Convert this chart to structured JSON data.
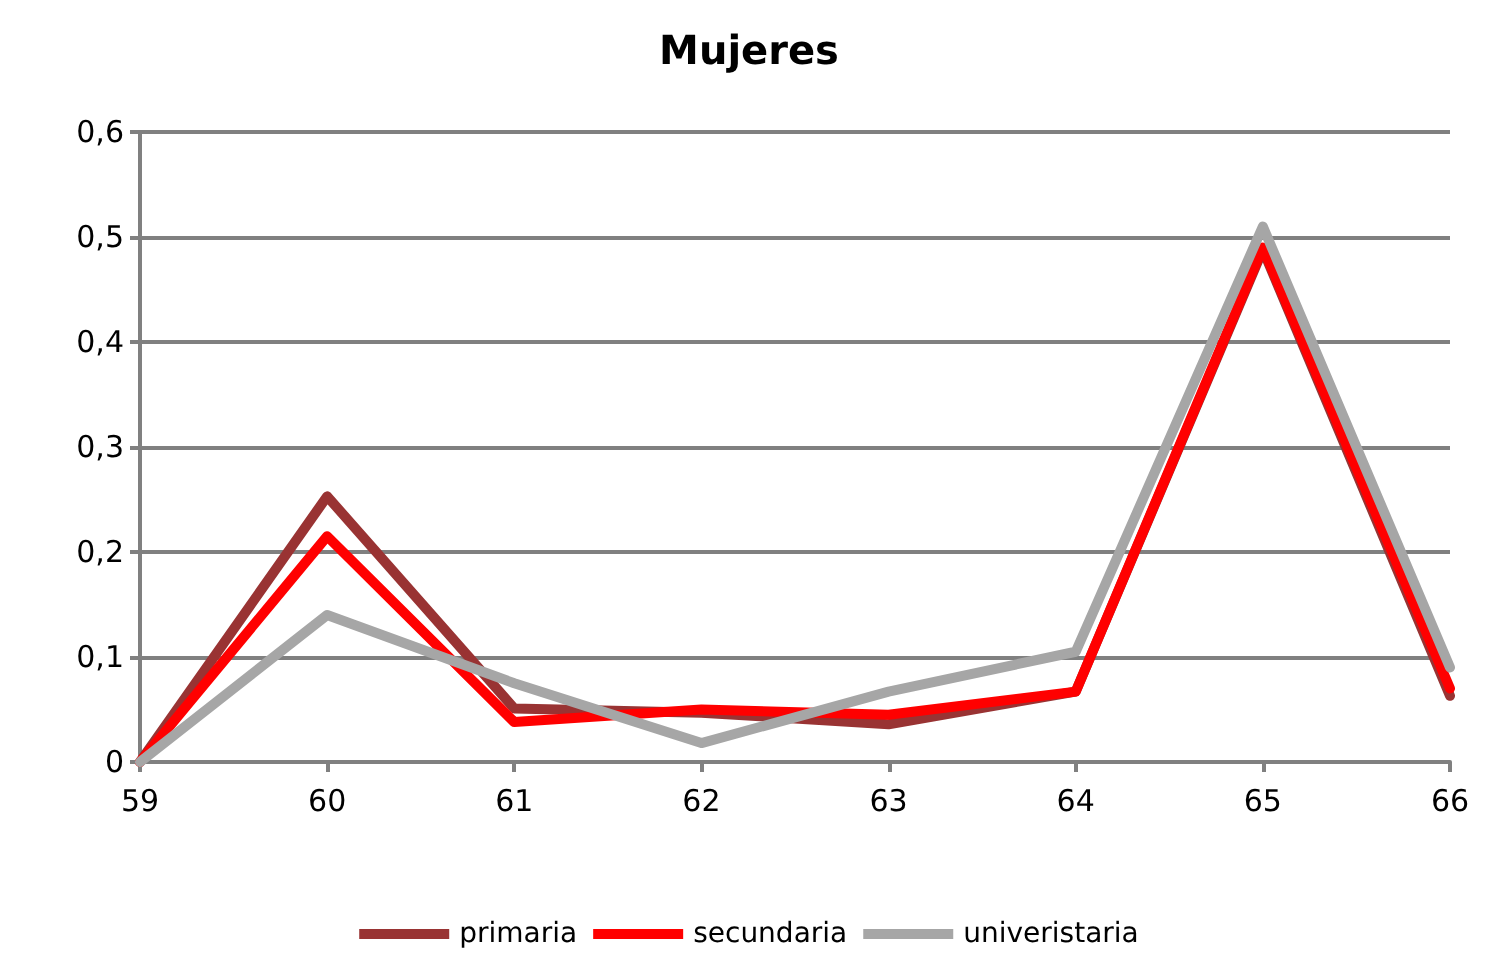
{
  "chart_data": {
    "type": "line",
    "title": "Mujeres",
    "x": [
      59,
      60,
      61,
      62,
      63,
      64,
      65,
      66
    ],
    "series": [
      {
        "name": "primaria",
        "color": "#993333",
        "values": [
          0,
          0.253,
          0.051,
          0.047,
          0.036,
          0.067,
          0.488,
          0.063
        ]
      },
      {
        "name": "secundaria",
        "color": "#ff0000",
        "values": [
          0,
          0.215,
          0.038,
          0.05,
          0.045,
          0.067,
          0.49,
          0.07
        ]
      },
      {
        "name": "univeristaria",
        "color": "#a6a6a6",
        "values": [
          0,
          0.14,
          0.075,
          0.018,
          0.067,
          0.105,
          0.51,
          0.09
        ]
      }
    ],
    "xlim": [
      59,
      66
    ],
    "xticks": [
      59,
      60,
      61,
      62,
      63,
      64,
      65,
      66
    ],
    "ylim": [
      0,
      0.6
    ],
    "yticks": [
      0,
      {
        "value": 0.1,
        "label": "0,1"
      },
      {
        "value": 0.2,
        "label": "0,2"
      },
      {
        "value": 0.3,
        "label": "0,3"
      },
      {
        "value": 0.4,
        "label": "0,4"
      },
      {
        "value": 0.5,
        "label": "0,5"
      },
      {
        "value": 0.6,
        "label": "0,6"
      }
    ],
    "grid": "y",
    "legend": "bottom",
    "marker": "none",
    "line_style": "solid"
  }
}
